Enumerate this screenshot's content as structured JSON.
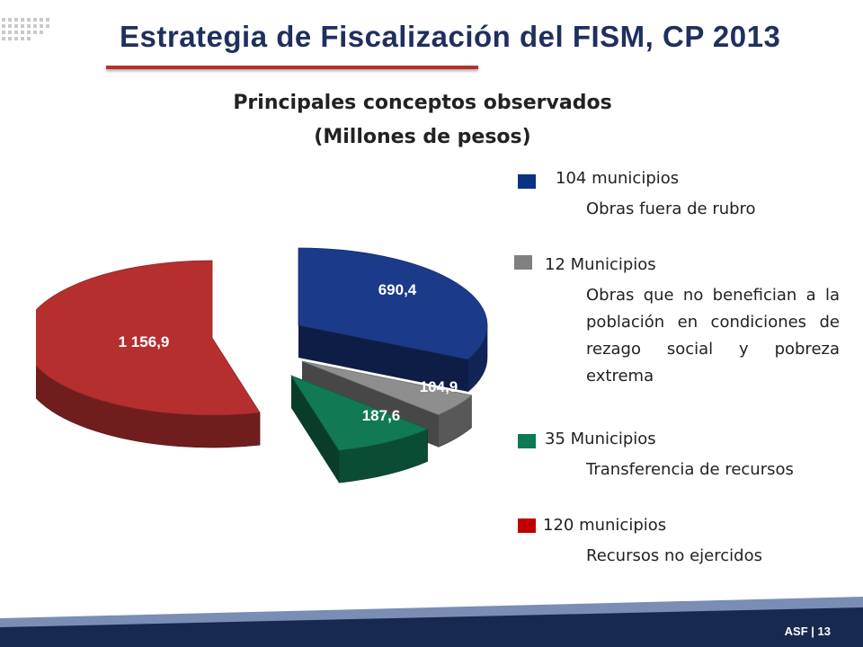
{
  "header": {
    "title": "Estrategia de Fiscalización del FISM, CP 2013"
  },
  "chart_data": {
    "type": "pie",
    "title": "Principales conceptos observados",
    "subtitle": "(Millones de pesos)",
    "slices": [
      {
        "label": "690,4",
        "value": 690.4,
        "color": "#1b3a8a"
      },
      {
        "label": "104,9",
        "value": 104.9,
        "color": "#8e8e8e"
      },
      {
        "label": "187,6",
        "value": 187.6,
        "color": "#117a54"
      },
      {
        "label": "1 156,9",
        "value": 1156.9,
        "color": "#b52f2f"
      }
    ],
    "exploded": true,
    "three_d": true
  },
  "legend": [
    {
      "head": "104 municipios",
      "desc": "Obras fuera de rubro",
      "color": "#0a3384"
    },
    {
      "head": "12 Municipios",
      "desc": "Obras que no benefician a la población en condiciones de rezago social y pobreza extrema",
      "color": "#808080"
    },
    {
      "head": "35 Municipios",
      "desc": "Transferencia de recursos",
      "color": "#0d7a55"
    },
    {
      "head": "120 municipios",
      "desc": "Recursos no ejercidos",
      "color": "#c00000"
    }
  ],
  "footer": {
    "page_label": "ASF | 13",
    "colors": {
      "dark": "#17294f",
      "light": "#7a8db5"
    }
  }
}
